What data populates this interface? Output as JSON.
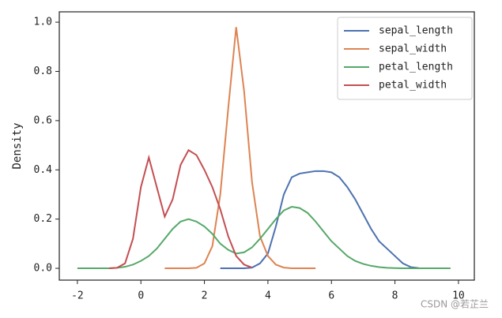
{
  "chart_data": {
    "type": "line",
    "y_label": "Density",
    "x": [
      -2,
      -1.75,
      -1.5,
      -1.25,
      -1,
      -0.75,
      -0.5,
      -0.25,
      0,
      0.25,
      0.5,
      0.75,
      1,
      1.25,
      1.5,
      1.75,
      2,
      2.25,
      2.5,
      2.75,
      3,
      3.25,
      3.5,
      3.75,
      4,
      4.25,
      4.5,
      4.75,
      5,
      5.25,
      5.5,
      5.75,
      6,
      6.25,
      6.5,
      6.75,
      7,
      7.25,
      7.5,
      7.75,
      8,
      8.25,
      8.5,
      8.75,
      9,
      9.25,
      9.5,
      9.75
    ],
    "series": [
      {
        "name": "sepal_length",
        "color": "#4c72b0",
        "values": [
          null,
          null,
          null,
          null,
          null,
          null,
          null,
          null,
          null,
          null,
          null,
          null,
          null,
          null,
          null,
          null,
          null,
          null,
          0,
          0,
          0,
          0,
          0.003,
          0.02,
          0.06,
          0.17,
          0.3,
          0.37,
          0.385,
          0.39,
          0.395,
          0.395,
          0.39,
          0.37,
          0.33,
          0.28,
          0.22,
          0.16,
          0.11,
          0.08,
          0.05,
          0.02,
          0.005,
          0.001,
          null,
          null,
          null,
          null
        ]
      },
      {
        "name": "sepal_width",
        "color": "#dd8452",
        "values": [
          null,
          null,
          null,
          null,
          null,
          null,
          null,
          null,
          null,
          null,
          null,
          0,
          0,
          0,
          0,
          0.002,
          0.02,
          0.09,
          0.3,
          0.65,
          0.98,
          0.72,
          0.35,
          0.13,
          0.05,
          0.015,
          0.003,
          0,
          0,
          0,
          0,
          null,
          null,
          null,
          null,
          null,
          null,
          null,
          null,
          null,
          null,
          null,
          null,
          null,
          null,
          null,
          null,
          null
        ]
      },
      {
        "name": "petal_length",
        "color": "#55a868",
        "values": [
          0,
          0,
          0,
          0,
          0,
          0.002,
          0.006,
          0.015,
          0.03,
          0.05,
          0.08,
          0.12,
          0.16,
          0.19,
          0.2,
          0.19,
          0.17,
          0.14,
          0.1,
          0.075,
          0.06,
          0.065,
          0.085,
          0.12,
          0.16,
          0.2,
          0.235,
          0.25,
          0.245,
          0.225,
          0.19,
          0.15,
          0.11,
          0.08,
          0.05,
          0.03,
          0.018,
          0.01,
          0.005,
          0.002,
          0.001,
          0,
          0,
          0,
          0,
          0,
          0,
          0
        ]
      },
      {
        "name": "petal_width",
        "color": "#c44e52",
        "values": [
          null,
          null,
          null,
          null,
          0,
          0.002,
          0.02,
          0.12,
          0.33,
          0.45,
          0.33,
          0.21,
          0.28,
          0.42,
          0.48,
          0.46,
          0.4,
          0.33,
          0.24,
          0.13,
          0.05,
          0.015,
          0.003,
          null,
          null,
          null,
          null,
          null,
          null,
          null,
          null,
          null,
          null,
          null,
          null,
          null,
          null,
          null,
          null,
          null,
          null,
          null,
          null,
          null,
          null,
          null,
          null,
          null
        ]
      }
    ],
    "xlim": [
      -2.57,
      10.5
    ],
    "ylim": [
      -0.048,
      1.042
    ],
    "xticks": [
      -2,
      0,
      2,
      4,
      6,
      8,
      10
    ],
    "yticks": [
      {
        "value": 0,
        "label": "0.0"
      },
      {
        "value": 0.2,
        "label": "0.2"
      },
      {
        "value": 0.4,
        "label": "0.4"
      },
      {
        "value": 0.6,
        "label": "0.6"
      },
      {
        "value": 0.8,
        "label": "0.8"
      },
      {
        "value": 1,
        "label": "1.0"
      }
    ],
    "legend": "upper right",
    "watermark": "CSDN @若芷兰"
  }
}
